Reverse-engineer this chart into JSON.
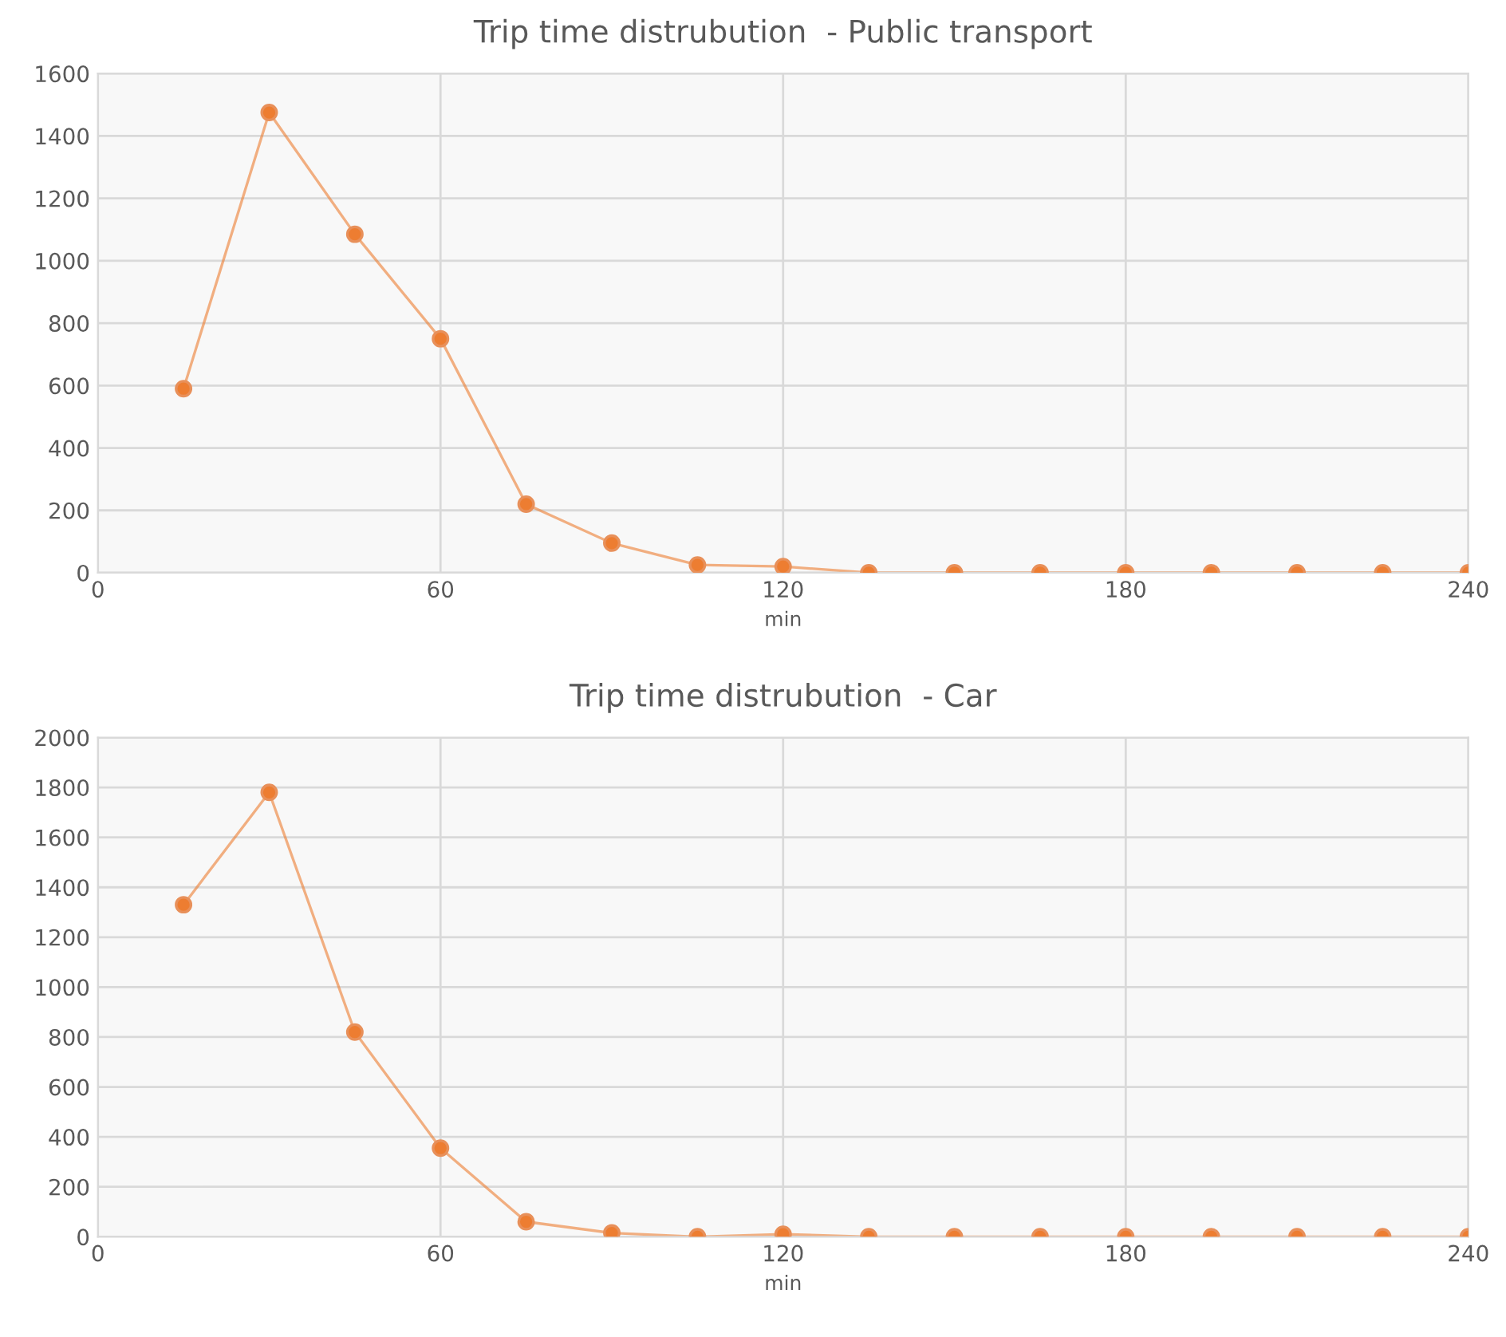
{
  "chart_data": [
    {
      "type": "line",
      "title": "Trip time distrubution  - Public transport",
      "xlabel": "min",
      "x": [
        15,
        30,
        45,
        60,
        75,
        90,
        105,
        120,
        135,
        150,
        165,
        180,
        195,
        210,
        225,
        240
      ],
      "series": [
        {
          "color": "#ed7d31",
          "values": [
            590,
            1475,
            1085,
            750,
            220,
            95,
            25,
            20,
            0,
            0,
            0,
            0,
            0,
            0,
            0,
            0
          ]
        }
      ],
      "xlim": [
        0,
        240
      ],
      "xticks": [
        0,
        60,
        120,
        180,
        240
      ],
      "ylim": [
        0,
        1600
      ],
      "yticks": [
        0,
        200,
        400,
        600,
        800,
        1000,
        1200,
        1400,
        1600
      ],
      "grid": true,
      "marker": "circle",
      "line_style": "solid"
    },
    {
      "type": "line",
      "title": "Trip time distrubution  - Car",
      "xlabel": "min",
      "x": [
        15,
        30,
        45,
        60,
        75,
        90,
        105,
        120,
        135,
        150,
        165,
        180,
        195,
        210,
        225,
        240
      ],
      "series": [
        {
          "color": "#ed7d31",
          "values": [
            1330,
            1780,
            820,
            355,
            60,
            15,
            0,
            10,
            0,
            0,
            0,
            0,
            0,
            0,
            0,
            0
          ]
        }
      ],
      "xlim": [
        0,
        240
      ],
      "xticks": [
        0,
        60,
        120,
        180,
        240
      ],
      "ylim": [
        0,
        2000
      ],
      "yticks": [
        0,
        200,
        400,
        600,
        800,
        1000,
        1200,
        1400,
        1600,
        1800,
        2000
      ],
      "grid": true,
      "marker": "circle",
      "line_style": "solid"
    }
  ]
}
